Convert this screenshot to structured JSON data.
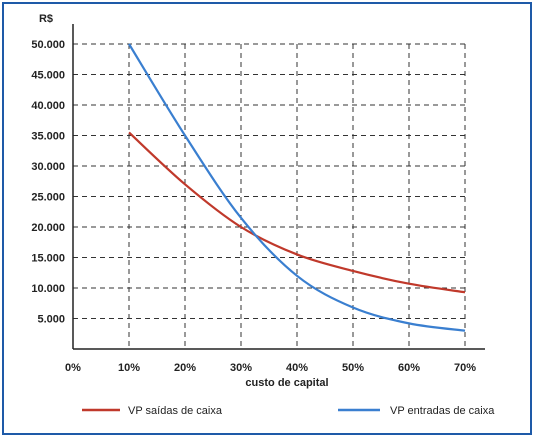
{
  "chart_data": {
    "type": "line",
    "ylabel": "R$",
    "xlabel": "custo de capital",
    "x": [
      0.1,
      0.2,
      0.3,
      0.4,
      0.5,
      0.6,
      0.7
    ],
    "x_ticks": [
      "0%",
      "10%",
      "20%",
      "30%",
      "40%",
      "50%",
      "60%",
      "70%"
    ],
    "y_ticks": [
      "5.000",
      "10.000",
      "15.000",
      "20.000",
      "25.000",
      "30.000",
      "35.000",
      "40.000",
      "45.000",
      "50.000"
    ],
    "xlim": [
      0,
      0.7
    ],
    "ylim": [
      0,
      50000
    ],
    "grid": "dashed",
    "legend_position": "bottom",
    "series": [
      {
        "name": "VP saídas de caixa",
        "color": "#c0392b",
        "x": [
          0.1,
          0.2,
          0.3,
          0.4,
          0.5,
          0.6,
          0.7
        ],
        "values": [
          35500,
          27000,
          20000,
          15500,
          12800,
          10700,
          9300
        ]
      },
      {
        "name": "VP entradas de caixa",
        "color": "#3a7fd0",
        "x": [
          0.1,
          0.2,
          0.3,
          0.4,
          0.5,
          0.6,
          0.7
        ],
        "values": [
          50000,
          35000,
          21500,
          12000,
          6800,
          4200,
          3000
        ]
      }
    ]
  }
}
